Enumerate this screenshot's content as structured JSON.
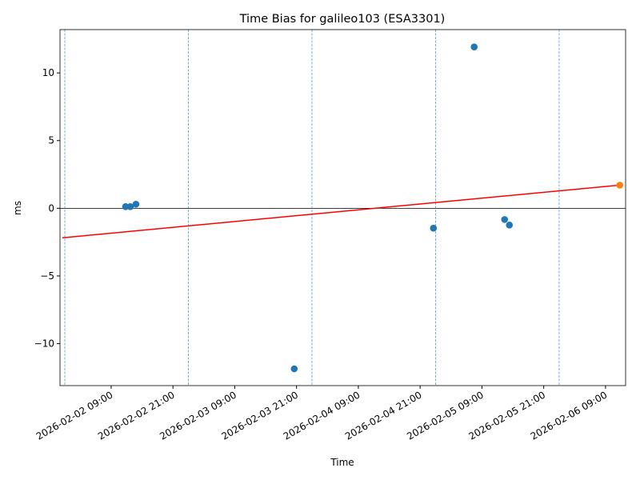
{
  "chart_data": {
    "type": "scatter",
    "title": "Time Bias for galileo103 (ESA3301)",
    "x_label": "Time",
    "y_label": "ms",
    "xlim": [
      "2026-02-01 23:04",
      "2026-02-06 12:54"
    ],
    "ylim": [
      -13.1,
      13.2
    ],
    "xticks": [
      "2026-02-02 09:00",
      "2026-02-02 21:00",
      "2026-02-03 09:00",
      "2026-02-03 21:00",
      "2026-02-04 09:00",
      "2026-02-04 21:00",
      "2026-02-05 09:00",
      "2026-02-05 21:00",
      "2026-02-06 09:00"
    ],
    "yticks": [
      {
        "value": -10,
        "label": "−10"
      },
      {
        "value": -5,
        "label": "−5"
      },
      0,
      5,
      10
    ],
    "hline": {
      "value": 0,
      "color": "#000000"
    },
    "vlines": {
      "color": "#1f77b4",
      "x": [
        "2026-02-02 00:00",
        "2026-02-03 00:00",
        "2026-02-04 00:00",
        "2026-02-05 00:00",
        "2026-02-06 00:00"
      ]
    },
    "series": [
      {
        "type": "scatter",
        "color": "#1f77b4",
        "x": [
          "2026-02-02 11:48",
          "2026-02-02 12:44",
          "2026-02-02 13:49",
          "2026-02-03 20:33",
          "2026-02-04 23:35",
          "2026-02-05 07:30",
          "2026-02-05 13:24",
          "2026-02-05 14:20"
        ],
        "values": [
          0.12,
          0.12,
          0.3,
          -11.86,
          -1.47,
          11.92,
          -0.83,
          -1.24
        ]
      },
      {
        "type": "scatter",
        "color": "#ff7f0e",
        "x": [
          "2026-02-06 11:46"
        ],
        "values": [
          1.71
        ]
      },
      {
        "type": "line",
        "color": "#ff0000",
        "x": [
          "2026-02-01 23:32",
          "2026-02-06 11:46"
        ],
        "values": [
          -2.18,
          1.71
        ]
      }
    ]
  }
}
